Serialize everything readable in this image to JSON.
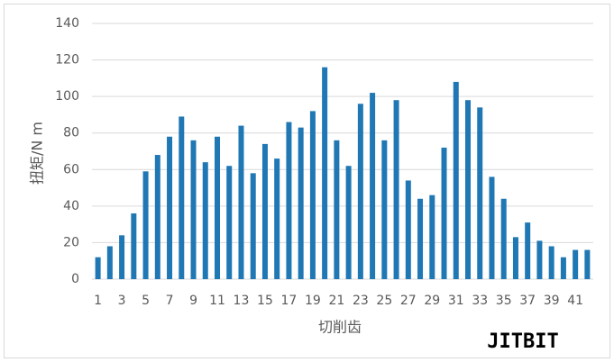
{
  "chart_data": {
    "type": "bar",
    "x_label": "切削齿",
    "y_label": "扭矩/N m",
    "watermark": "JITBIT",
    "categories": [
      "1",
      null,
      "3",
      null,
      "5",
      null,
      "7",
      null,
      "9",
      null,
      "11",
      null,
      "13",
      null,
      "15",
      null,
      "17",
      null,
      "19",
      null,
      "21",
      null,
      "23",
      null,
      "25",
      null,
      "27",
      null,
      "29",
      null,
      "31",
      null,
      "33",
      null,
      "35",
      null,
      "37",
      null,
      "39",
      null,
      "41",
      null
    ],
    "values": [
      12,
      18,
      24,
      36,
      59,
      68,
      78,
      89,
      76,
      64,
      78,
      62,
      84,
      58,
      74,
      66,
      86,
      83,
      92,
      116,
      76,
      62,
      96,
      102,
      76,
      98,
      54,
      44,
      46,
      72,
      108,
      98,
      94,
      56,
      44,
      23,
      31,
      21,
      18,
      12,
      16,
      16
    ],
    "color": "#1f77b4",
    "ylim": [
      0,
      140
    ],
    "yticks": [
      0,
      20,
      40,
      60,
      80,
      100,
      120,
      140
    ],
    "grid": true
  }
}
